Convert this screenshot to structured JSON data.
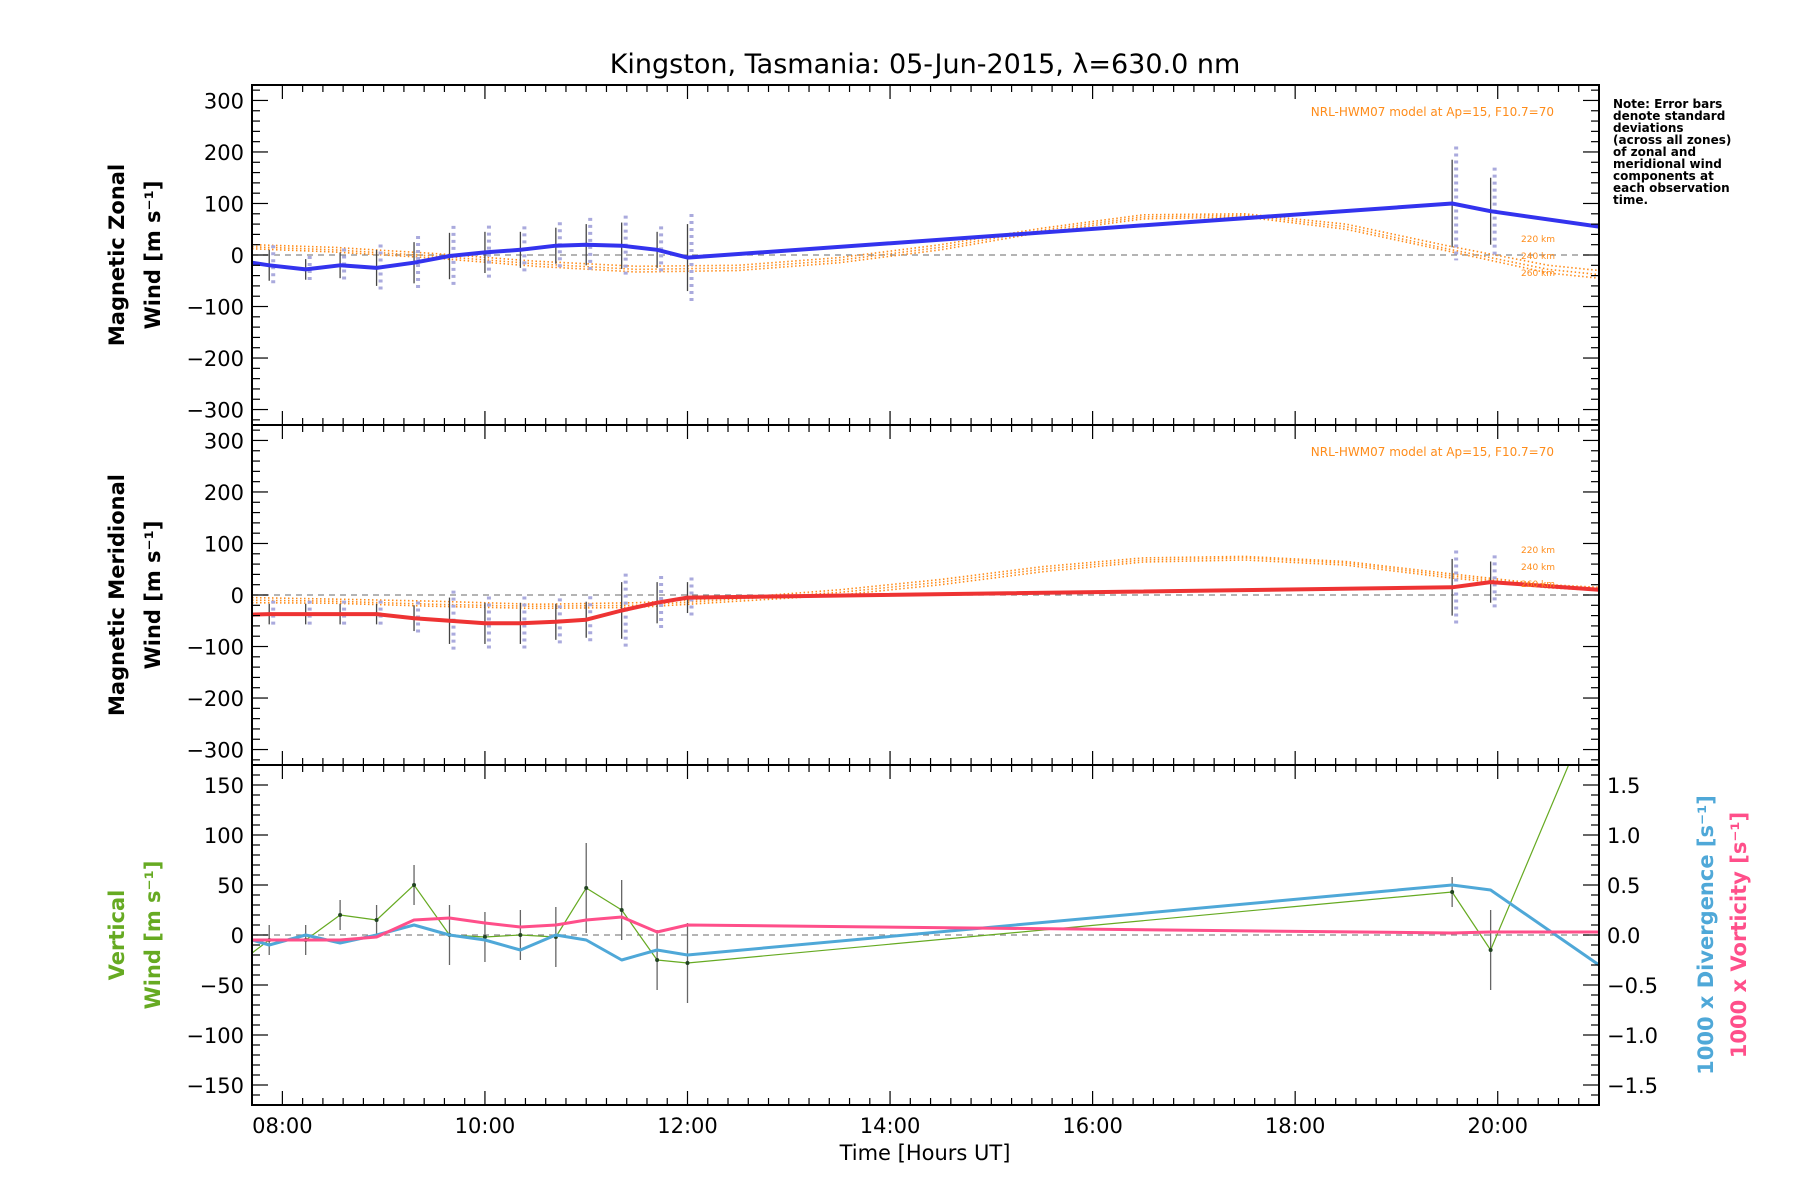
{
  "chart_data": {
    "title": "Kingston, Tasmania: 05-Jun-2015, λ=630.0 nm",
    "xlabel": "Time [Hours UT]",
    "xlim": [
      7.7,
      21.0
    ],
    "x_ticks": [
      8,
      10,
      12,
      14,
      16,
      18,
      20
    ],
    "x_tick_labels": [
      "08:00",
      "10:00",
      "12:00",
      "14:00",
      "16:00",
      "18:00",
      "20:00"
    ],
    "note": [
      "Note: Error bars",
      "denote standard",
      "deviations",
      "(across all zones)",
      "of zonal and",
      "meridional wind",
      "components at",
      "each observation",
      "time."
    ],
    "colors": {
      "zonal": "#3333ee",
      "meridional": "#ee3333",
      "model": "#ff8c1a",
      "vertical": "#66aa22",
      "divergence": "#4fa8d8",
      "vorticity": "#ff4f8a",
      "zones": "#aaaadd"
    },
    "panels": [
      {
        "type": "line",
        "id": "zonal",
        "ylabel_line1": "Magnetic Zonal",
        "ylabel_line2": "Wind [m s⁻¹]",
        "ylim": [
          -330,
          330
        ],
        "y_ticks": [
          -300,
          -200,
          -100,
          0,
          100,
          200,
          300
        ],
        "y_tick_labels": [
          "−300",
          "−200",
          "−100",
          "0",
          "100",
          "200",
          "300"
        ],
        "model_note": "NRL-HWM07 model at Ap=15, F10.7=70",
        "model_altitudes": [
          "220 km",
          "240 km",
          "260 km"
        ],
        "series": [
          {
            "x": [
              7.7,
              7.87,
              8.23,
              8.57,
              8.93,
              9.3,
              9.65,
              10.0,
              10.35,
              10.7,
              11.0,
              11.35,
              11.7,
              12.0,
              19.55,
              19.93,
              21.0
            ],
            "values": [
              -15,
              -20,
              -28,
              -20,
              -25,
              -15,
              -2,
              5,
              10,
              18,
              20,
              18,
              10,
              -5,
              100,
              85,
              55
            ],
            "errors": [
              null,
              30,
              20,
              25,
              35,
              40,
              45,
              40,
              35,
              35,
              40,
              45,
              35,
              65,
              85,
              65,
              null
            ]
          }
        ],
        "model": {
          "x": [
            7.7,
            8.5,
            9.5,
            10.5,
            11.5,
            12.5,
            13.5,
            14.5,
            15.5,
            16.5,
            17.5,
            18.5,
            19.5,
            20.5,
            21.0
          ],
          "altitudes": [
            {
              "name": "220 km",
              "values": [
                20,
                15,
                3,
                -12,
                -22,
                -20,
                -5,
                20,
                52,
                78,
                80,
                60,
                18,
                -20,
                -30
              ]
            },
            {
              "name": "240 km",
              "values": [
                16,
                10,
                -2,
                -17,
                -28,
                -25,
                -10,
                15,
                48,
                74,
                77,
                55,
                12,
                -28,
                -38
              ]
            },
            {
              "name": "260 km",
              "values": [
                12,
                6,
                -6,
                -22,
                -33,
                -30,
                -15,
                10,
                44,
                70,
                74,
                50,
                8,
                -35,
                -45
              ]
            }
          ]
        }
      },
      {
        "type": "line",
        "id": "meridional",
        "ylabel_line1": "Magnetic Meridional",
        "ylabel_line2": "Wind [m s⁻¹]",
        "ylim": [
          -330,
          330
        ],
        "y_ticks": [
          -300,
          -200,
          -100,
          0,
          100,
          200,
          300
        ],
        "y_tick_labels": [
          "−300",
          "−200",
          "−100",
          "0",
          "100",
          "200",
          "300"
        ],
        "model_note": "NRL-HWM07 model at Ap=15, F10.7=70",
        "model_altitudes": [
          "220 km",
          "240 km",
          "260 km"
        ],
        "series": [
          {
            "x": [
              7.7,
              7.87,
              8.23,
              8.57,
              8.93,
              9.3,
              9.65,
              10.0,
              10.35,
              10.7,
              11.0,
              11.35,
              11.7,
              12.0,
              19.55,
              19.93,
              21.0
            ],
            "values": [
              -38,
              -37,
              -37,
              -37,
              -37,
              -45,
              -50,
              -55,
              -55,
              -52,
              -48,
              -30,
              -15,
              -5,
              15,
              25,
              10
            ],
            "errors": [
              null,
              20,
              20,
              20,
              20,
              25,
              45,
              40,
              40,
              35,
              35,
              55,
              40,
              30,
              55,
              40,
              null
            ]
          }
        ],
        "model": {
          "x": [
            7.7,
            8.5,
            9.5,
            10.5,
            11.5,
            12.5,
            13.5,
            14.5,
            15.5,
            16.5,
            17.5,
            18.5,
            19.5,
            20.5,
            21.0
          ],
          "altitudes": [
            {
              "name": "220 km",
              "values": [
                -5,
                -8,
                -12,
                -18,
                -15,
                -5,
                10,
                30,
                55,
                72,
                75,
                65,
                42,
                20,
                15
              ]
            },
            {
              "name": "240 km",
              "values": [
                -10,
                -12,
                -18,
                -22,
                -20,
                -8,
                5,
                25,
                50,
                68,
                72,
                62,
                38,
                17,
                12
              ]
            },
            {
              "name": "260 km",
              "values": [
                -15,
                -16,
                -22,
                -26,
                -24,
                -12,
                0,
                20,
                45,
                64,
                68,
                58,
                34,
                14,
                9
              ]
            }
          ]
        }
      },
      {
        "type": "line",
        "id": "vertical",
        "ylabel_line1": "Vertical",
        "ylabel_line2": "Wind [m s⁻¹]",
        "ylim": [
          -170,
          170
        ],
        "y_ticks": [
          -150,
          -100,
          -50,
          0,
          50,
          100,
          150
        ],
        "y_tick_labels": [
          "−150",
          "−100",
          "−50",
          "0",
          "50",
          "100",
          "150"
        ],
        "y2_label_div": "1000 x Divergence [s⁻¹]",
        "y2_label_vort": "1000 x Vorticity [s⁻¹]",
        "y2lim": [
          -1.7,
          1.7
        ],
        "y2_ticks": [
          -1.5,
          -1.0,
          -0.5,
          0.0,
          0.5,
          1.0,
          1.5
        ],
        "y2_tick_labels": [
          "−1.5",
          "−1.0",
          "−0.5",
          "0.0",
          "0.5",
          "1.0",
          "1.5"
        ],
        "series": [
          {
            "name": "Vertical Wind",
            "x": [
              7.7,
              7.87,
              8.23,
              8.57,
              8.93,
              9.3,
              9.65,
              10.0,
              10.35,
              10.7,
              11.0,
              11.35,
              11.7,
              12.0,
              19.55,
              19.93,
              20.7
            ],
            "values": [
              -18,
              -5,
              -5,
              20,
              15,
              50,
              0,
              -2,
              0,
              -2,
              47,
              25,
              -25,
              -28,
              43,
              -15,
              170
            ],
            "errors": [
              null,
              15,
              15,
              15,
              15,
              20,
              30,
              25,
              25,
              30,
              45,
              30,
              30,
              40,
              15,
              40,
              null
            ]
          },
          {
            "name": "Divergence",
            "axis": "right",
            "x": [
              7.7,
              7.87,
              8.23,
              8.57,
              8.93,
              9.3,
              9.65,
              10.0,
              10.35,
              10.7,
              11.0,
              11.35,
              11.7,
              12.0,
              19.55,
              19.93,
              21.0
            ],
            "values": [
              -0.05,
              -0.1,
              0.0,
              -0.08,
              0.0,
              0.1,
              0.0,
              -0.05,
              -0.15,
              0.0,
              -0.05,
              -0.25,
              -0.15,
              -0.2,
              0.5,
              0.45,
              -0.3
            ]
          },
          {
            "name": "Vorticity",
            "axis": "right",
            "x": [
              7.7,
              7.87,
              8.23,
              8.57,
              8.93,
              9.3,
              9.65,
              10.0,
              10.35,
              10.7,
              11.0,
              11.35,
              11.7,
              12.0,
              19.55,
              19.93,
              21.0
            ],
            "values": [
              -0.05,
              -0.05,
              -0.05,
              -0.05,
              -0.02,
              0.15,
              0.17,
              0.12,
              0.08,
              0.1,
              0.15,
              0.18,
              0.03,
              0.1,
              0.02,
              0.03,
              0.03
            ]
          }
        ]
      }
    ]
  }
}
